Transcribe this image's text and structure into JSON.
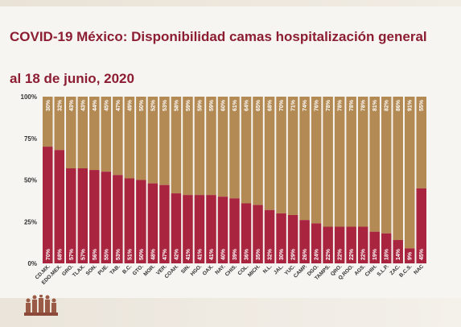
{
  "header": {
    "title": "COVID-19 México: Disponibilidad camas hospitalización general",
    "subtitle": "al 18 de junio, 2020"
  },
  "colors": {
    "occupied": "#a8243f",
    "available": "#b38a54",
    "title": "#8c1d32",
    "background": "#f7f5f1"
  },
  "chart_data": {
    "type": "bar",
    "stacked": true,
    "percent": true,
    "categories": [
      "CD.MX.",
      "EDO.MEX.",
      "GRO.",
      "TLAX.",
      "SON.",
      "PUE.",
      "TAB.",
      "B.C.",
      "GTO.",
      "MOR.",
      "VER.",
      "COAH.",
      "SIN.",
      "HGO.",
      "OAX.",
      "NAY.",
      "CHIS.",
      "COL.",
      "MICH.",
      "N.L.",
      "JAL.",
      "YUC.",
      "CAMP.",
      "DGO.",
      "TAMPS.",
      "QRO.",
      "Q.ROO.",
      "AGS.",
      "CHIH.",
      "S.L.P.",
      "ZAC.",
      "B.C.S.",
      "NAC"
    ],
    "series": [
      {
        "key": "occupied",
        "values": [
          70,
          68,
          57,
          57,
          56,
          55,
          53,
          51,
          50,
          48,
          47,
          42,
          41,
          41,
          41,
          40,
          39,
          36,
          35,
          32,
          30,
          29,
          26,
          24,
          22,
          22,
          22,
          22,
          19,
          18,
          14,
          9,
          45
        ]
      },
      {
        "key": "available",
        "values": [
          30,
          32,
          43,
          43,
          44,
          45,
          47,
          49,
          50,
          52,
          53,
          58,
          59,
          59,
          59,
          60,
          61,
          64,
          65,
          68,
          70,
          71,
          74,
          76,
          78,
          78,
          78,
          78,
          81,
          82,
          86,
          91,
          55
        ]
      }
    ],
    "yticks": [
      "0%",
      "25%",
      "50%",
      "75%",
      "100%"
    ],
    "ylim": [
      0,
      100
    ],
    "grid": false,
    "legend": "none"
  }
}
